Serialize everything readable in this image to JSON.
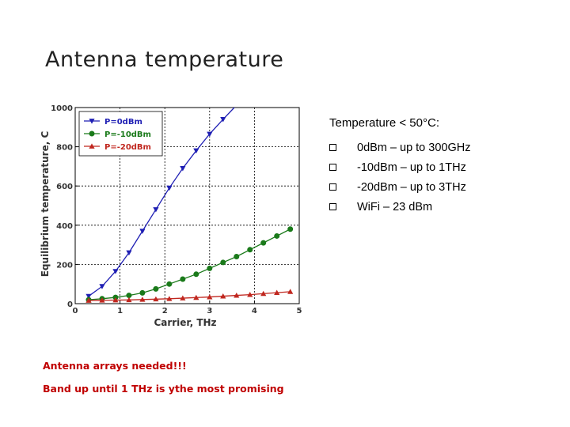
{
  "slide": {
    "title": "Antenna temperature",
    "bullets_heading": "Temperature < 50°C:",
    "bullets": [
      {
        "icon": "checkbox-icon",
        "text": "0dBm – up to 300GHz"
      },
      {
        "icon": "checkbox-icon",
        "text": "-10dBm – up to 1THz"
      },
      {
        "icon": "checkbox-icon",
        "text": "-20dBm – up to 3THz"
      },
      {
        "icon": "checkbox-icon",
        "text": "WiFi – 23 dBm"
      }
    ],
    "notes": [
      "Antenna arrays needed!!!",
      "Band up until 1 THz is ythe most promising"
    ],
    "note_color": "#c00000"
  },
  "chart_data": {
    "type": "line",
    "xlabel": "Carrier, THz",
    "ylabel": "Equilibrium temperature, C",
    "xlim": [
      0,
      5
    ],
    "ylim": [
      0,
      1000
    ],
    "xticks": [
      "0",
      "1",
      "2",
      "3",
      "4",
      "5"
    ],
    "yticks": [
      "0",
      "200",
      "400",
      "600",
      "800",
      "1000"
    ],
    "grid": true,
    "legend_position": "top-left",
    "series": [
      {
        "name": "P=0dBm",
        "color": "#1f1fb4",
        "marker": "triangle-down",
        "x": [
          0.3,
          0.6,
          0.9,
          1.2,
          1.5,
          1.8,
          2.1,
          2.4,
          2.7,
          3.0,
          3.3
        ],
        "y": [
          38,
          88,
          165,
          260,
          370,
          480,
          590,
          690,
          780,
          865,
          940
        ],
        "line_x": [
          0.3,
          0.6,
          0.9,
          1.2,
          1.5,
          1.8,
          2.1,
          2.4,
          2.7,
          3.0,
          3.3,
          3.55
        ],
        "line_y": [
          38,
          88,
          165,
          260,
          370,
          480,
          590,
          690,
          780,
          865,
          940,
          1000
        ]
      },
      {
        "name": "P=-10dBm",
        "color": "#1a7a1a",
        "marker": "circle",
        "x": [
          0.3,
          0.6,
          0.9,
          1.2,
          1.5,
          1.8,
          2.1,
          2.4,
          2.7,
          3.0,
          3.3,
          3.6,
          3.9,
          4.2,
          4.5,
          4.8
        ],
        "y": [
          20,
          25,
          32,
          42,
          55,
          75,
          100,
          125,
          150,
          180,
          210,
          240,
          275,
          310,
          345,
          380
        ]
      },
      {
        "name": "P=-20dBm",
        "color": "#c0271f",
        "marker": "triangle-up",
        "x": [
          0.3,
          0.6,
          0.9,
          1.2,
          1.5,
          1.8,
          2.1,
          2.4,
          2.7,
          3.0,
          3.3,
          3.6,
          3.9,
          4.2,
          4.5,
          4.8
        ],
        "y": [
          16,
          17,
          18,
          19,
          21,
          23,
          25,
          28,
          31,
          34,
          38,
          42,
          46,
          51,
          56,
          61
        ]
      }
    ]
  }
}
